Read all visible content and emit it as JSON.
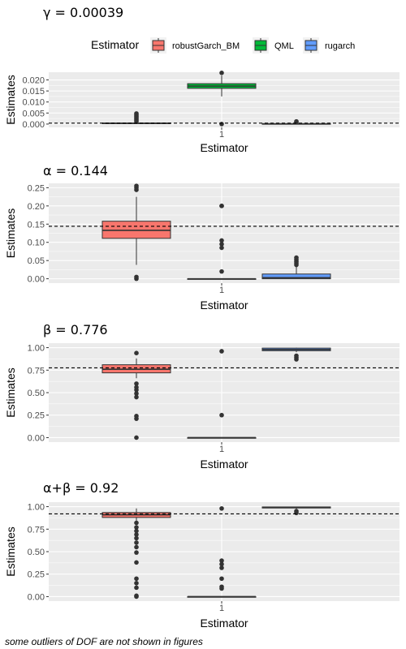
{
  "legend": {
    "title": "Estimator",
    "entries": [
      {
        "label": "robustGarch_BM",
        "color": "#F8766D"
      },
      {
        "label": "QML",
        "color": "#00BA38"
      },
      {
        "label": "rugarch",
        "color": "#619CFF"
      }
    ]
  },
  "caption": "some outliers of DOF are not shown in figures",
  "chart_data": [
    {
      "type": "boxplot",
      "title_symbol": "γ",
      "title_value": "0.00039",
      "true_value": 0.00039,
      "xlabel": "Estimator",
      "ylabel": "Estimates",
      "x_tick": "1",
      "ylim": [
        -0.0015,
        0.0235
      ],
      "y_ticks": [
        0.0,
        0.005,
        0.01,
        0.015,
        0.02
      ],
      "y_tick_labels": [
        "0.000",
        "0.005",
        "0.010",
        "0.015",
        "0.020"
      ],
      "series": [
        {
          "name": "robustGarch_BM",
          "min": 0.0,
          "q1": 0.0002,
          "median": 0.0003,
          "q3": 0.0005,
          "max": 0.0009,
          "outliers": [
            0.0012,
            0.0018,
            0.0024,
            0.003,
            0.0036,
            0.0042,
            0.0048
          ]
        },
        {
          "name": "QML",
          "min": 0.0125,
          "q1": 0.0162,
          "median": 0.0172,
          "q3": 0.0183,
          "max": 0.022,
          "outliers": [
            0.0232,
            0.0
          ]
        },
        {
          "name": "rugarch",
          "min": 0.0,
          "q1": 0.0,
          "median": 0.0001,
          "q3": 0.0002,
          "max": 0.0005,
          "outliers": [
            0.0008,
            0.0012
          ]
        }
      ]
    },
    {
      "type": "boxplot",
      "title_symbol": "α",
      "title_value": "0.144",
      "true_value": 0.144,
      "xlabel": "Estimator",
      "ylabel": "Estimates",
      "x_tick": "1",
      "ylim": [
        -0.012,
        0.262
      ],
      "y_ticks": [
        0.0,
        0.05,
        0.1,
        0.15,
        0.2,
        0.25
      ],
      "y_tick_labels": [
        "0.00",
        "0.05",
        "0.10",
        "0.15",
        "0.20",
        "0.25"
      ],
      "series": [
        {
          "name": "robustGarch_BM",
          "min": 0.038,
          "q1": 0.111,
          "median": 0.133,
          "q3": 0.158,
          "max": 0.225,
          "outliers": [
            0.255,
            0.25,
            0.244,
            0.005,
            0.0
          ]
        },
        {
          "name": "QML",
          "min": 0.0,
          "q1": 0.0,
          "median": 0.0,
          "q3": 0.0,
          "max": 0.0,
          "outliers": [
            0.2,
            0.2,
            0.105,
            0.095,
            0.085,
            0.02
          ]
        },
        {
          "name": "rugarch",
          "min": 0.0,
          "q1": 0.0,
          "median": 0.003,
          "q3": 0.013,
          "max": 0.033,
          "outliers": [
            0.058,
            0.053,
            0.048,
            0.043,
            0.038
          ]
        }
      ]
    },
    {
      "type": "boxplot",
      "title_symbol": "β",
      "title_value": "0.776",
      "true_value": 0.776,
      "xlabel": "Estimator",
      "ylabel": "Estimates",
      "x_tick": "1",
      "ylim": [
        -0.05,
        1.05
      ],
      "y_ticks": [
        0.0,
        0.25,
        0.5,
        0.75,
        1.0
      ],
      "y_tick_labels": [
        "0.00",
        "0.25",
        "0.50",
        "0.75",
        "1.00"
      ],
      "series": [
        {
          "name": "robustGarch_BM",
          "min": 0.66,
          "q1": 0.72,
          "median": 0.76,
          "q3": 0.81,
          "max": 0.88,
          "outliers": [
            0.94,
            0.6,
            0.56,
            0.53,
            0.49,
            0.45,
            0.24,
            0.21,
            0.0
          ]
        },
        {
          "name": "QML",
          "min": 0.0,
          "q1": 0.0,
          "median": 0.0,
          "q3": 0.0,
          "max": 0.0,
          "outliers": [
            0.96,
            0.25
          ]
        },
        {
          "name": "rugarch",
          "min": 0.95,
          "q1": 0.966,
          "median": 0.98,
          "q3": 0.995,
          "max": 1.0,
          "outliers": [
            0.91,
            0.89,
            0.87
          ]
        }
      ]
    },
    {
      "type": "boxplot",
      "title_symbol": "α+β",
      "title_value": "0.92",
      "true_value": 0.92,
      "xlabel": "Estimator",
      "ylabel": "Estimates",
      "x_tick": "1",
      "ylim": [
        -0.05,
        1.05
      ],
      "y_ticks": [
        0.0,
        0.25,
        0.5,
        0.75,
        1.0
      ],
      "y_tick_labels": [
        "0.00",
        "0.25",
        "0.50",
        "0.75",
        "1.00"
      ],
      "series": [
        {
          "name": "robustGarch_BM",
          "min": 0.84,
          "q1": 0.88,
          "median": 0.91,
          "q3": 0.935,
          "max": 0.98,
          "outliers": [
            0.82,
            0.77,
            0.73,
            0.69,
            0.65,
            0.6,
            0.55,
            0.49,
            0.38,
            0.2,
            0.15,
            0.1,
            0.01,
            0.0
          ]
        },
        {
          "name": "QML",
          "min": 0.0,
          "q1": 0.0,
          "median": 0.0,
          "q3": 0.0,
          "max": 0.0,
          "outliers": [
            0.98,
            0.4,
            0.36,
            0.32,
            0.2,
            0.11,
            0.09
          ]
        },
        {
          "name": "rugarch",
          "min": 0.975,
          "q1": 0.985,
          "median": 0.99,
          "q3": 0.997,
          "max": 1.0,
          "outliers": [
            0.95,
            0.93
          ]
        }
      ]
    }
  ]
}
